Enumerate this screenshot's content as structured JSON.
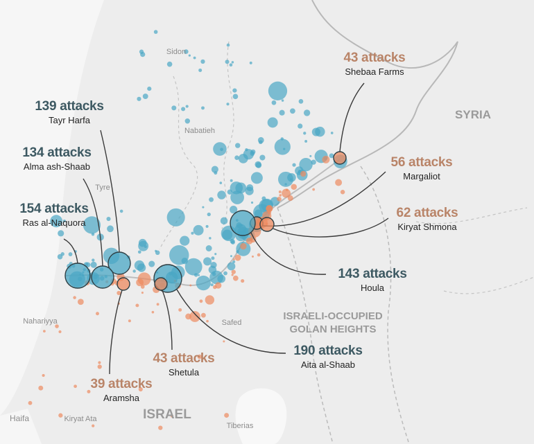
{
  "colors": {
    "lebanon_attacks": "#4aa7c4",
    "israel_attacks": "#ec8a5f",
    "callout_blue": "#3d5962",
    "callout_orange": "#b98468",
    "land": "#ededed",
    "water": "#f8f8f8"
  },
  "regions": {
    "syria": "SYRIA",
    "golan_line1": "ISRAELI-OCCUPIED",
    "golan_line2": "GOLAN HEIGHTS",
    "israel": "ISRAEL"
  },
  "cities": {
    "sidon": "Sidon",
    "nabatieh": "Nabatieh",
    "tyre": "Tyre",
    "safed": "Safed",
    "nahariyya": "Nahariyya",
    "haifa": "Haifa",
    "kiryat_ata": "Kiryat Ata",
    "tiberias": "Tiberias"
  },
  "callouts": [
    {
      "count": "139 attacks",
      "place": "Tayr Harfa",
      "side": "blue"
    },
    {
      "count": "134 attacks",
      "place": "Alma ash-Shaab",
      "side": "blue"
    },
    {
      "count": "154 attacks",
      "place": "Ras al-Naquora",
      "side": "blue"
    },
    {
      "count": "43 attacks",
      "place": "Shebaa Farms",
      "side": "orange"
    },
    {
      "count": "56 attacks",
      "place": "Margaliot",
      "side": "orange"
    },
    {
      "count": "62 attacks",
      "place": "Kiryat Shmona",
      "side": "orange"
    },
    {
      "count": "143 attacks",
      "place": "Houla",
      "side": "blue"
    },
    {
      "count": "190 attacks",
      "place": "Aita al-Shaab",
      "side": "blue"
    },
    {
      "count": "43 attacks",
      "place": "Shetula",
      "side": "orange"
    },
    {
      "count": "39 attacks",
      "place": "Aramsha",
      "side": "orange"
    }
  ]
}
